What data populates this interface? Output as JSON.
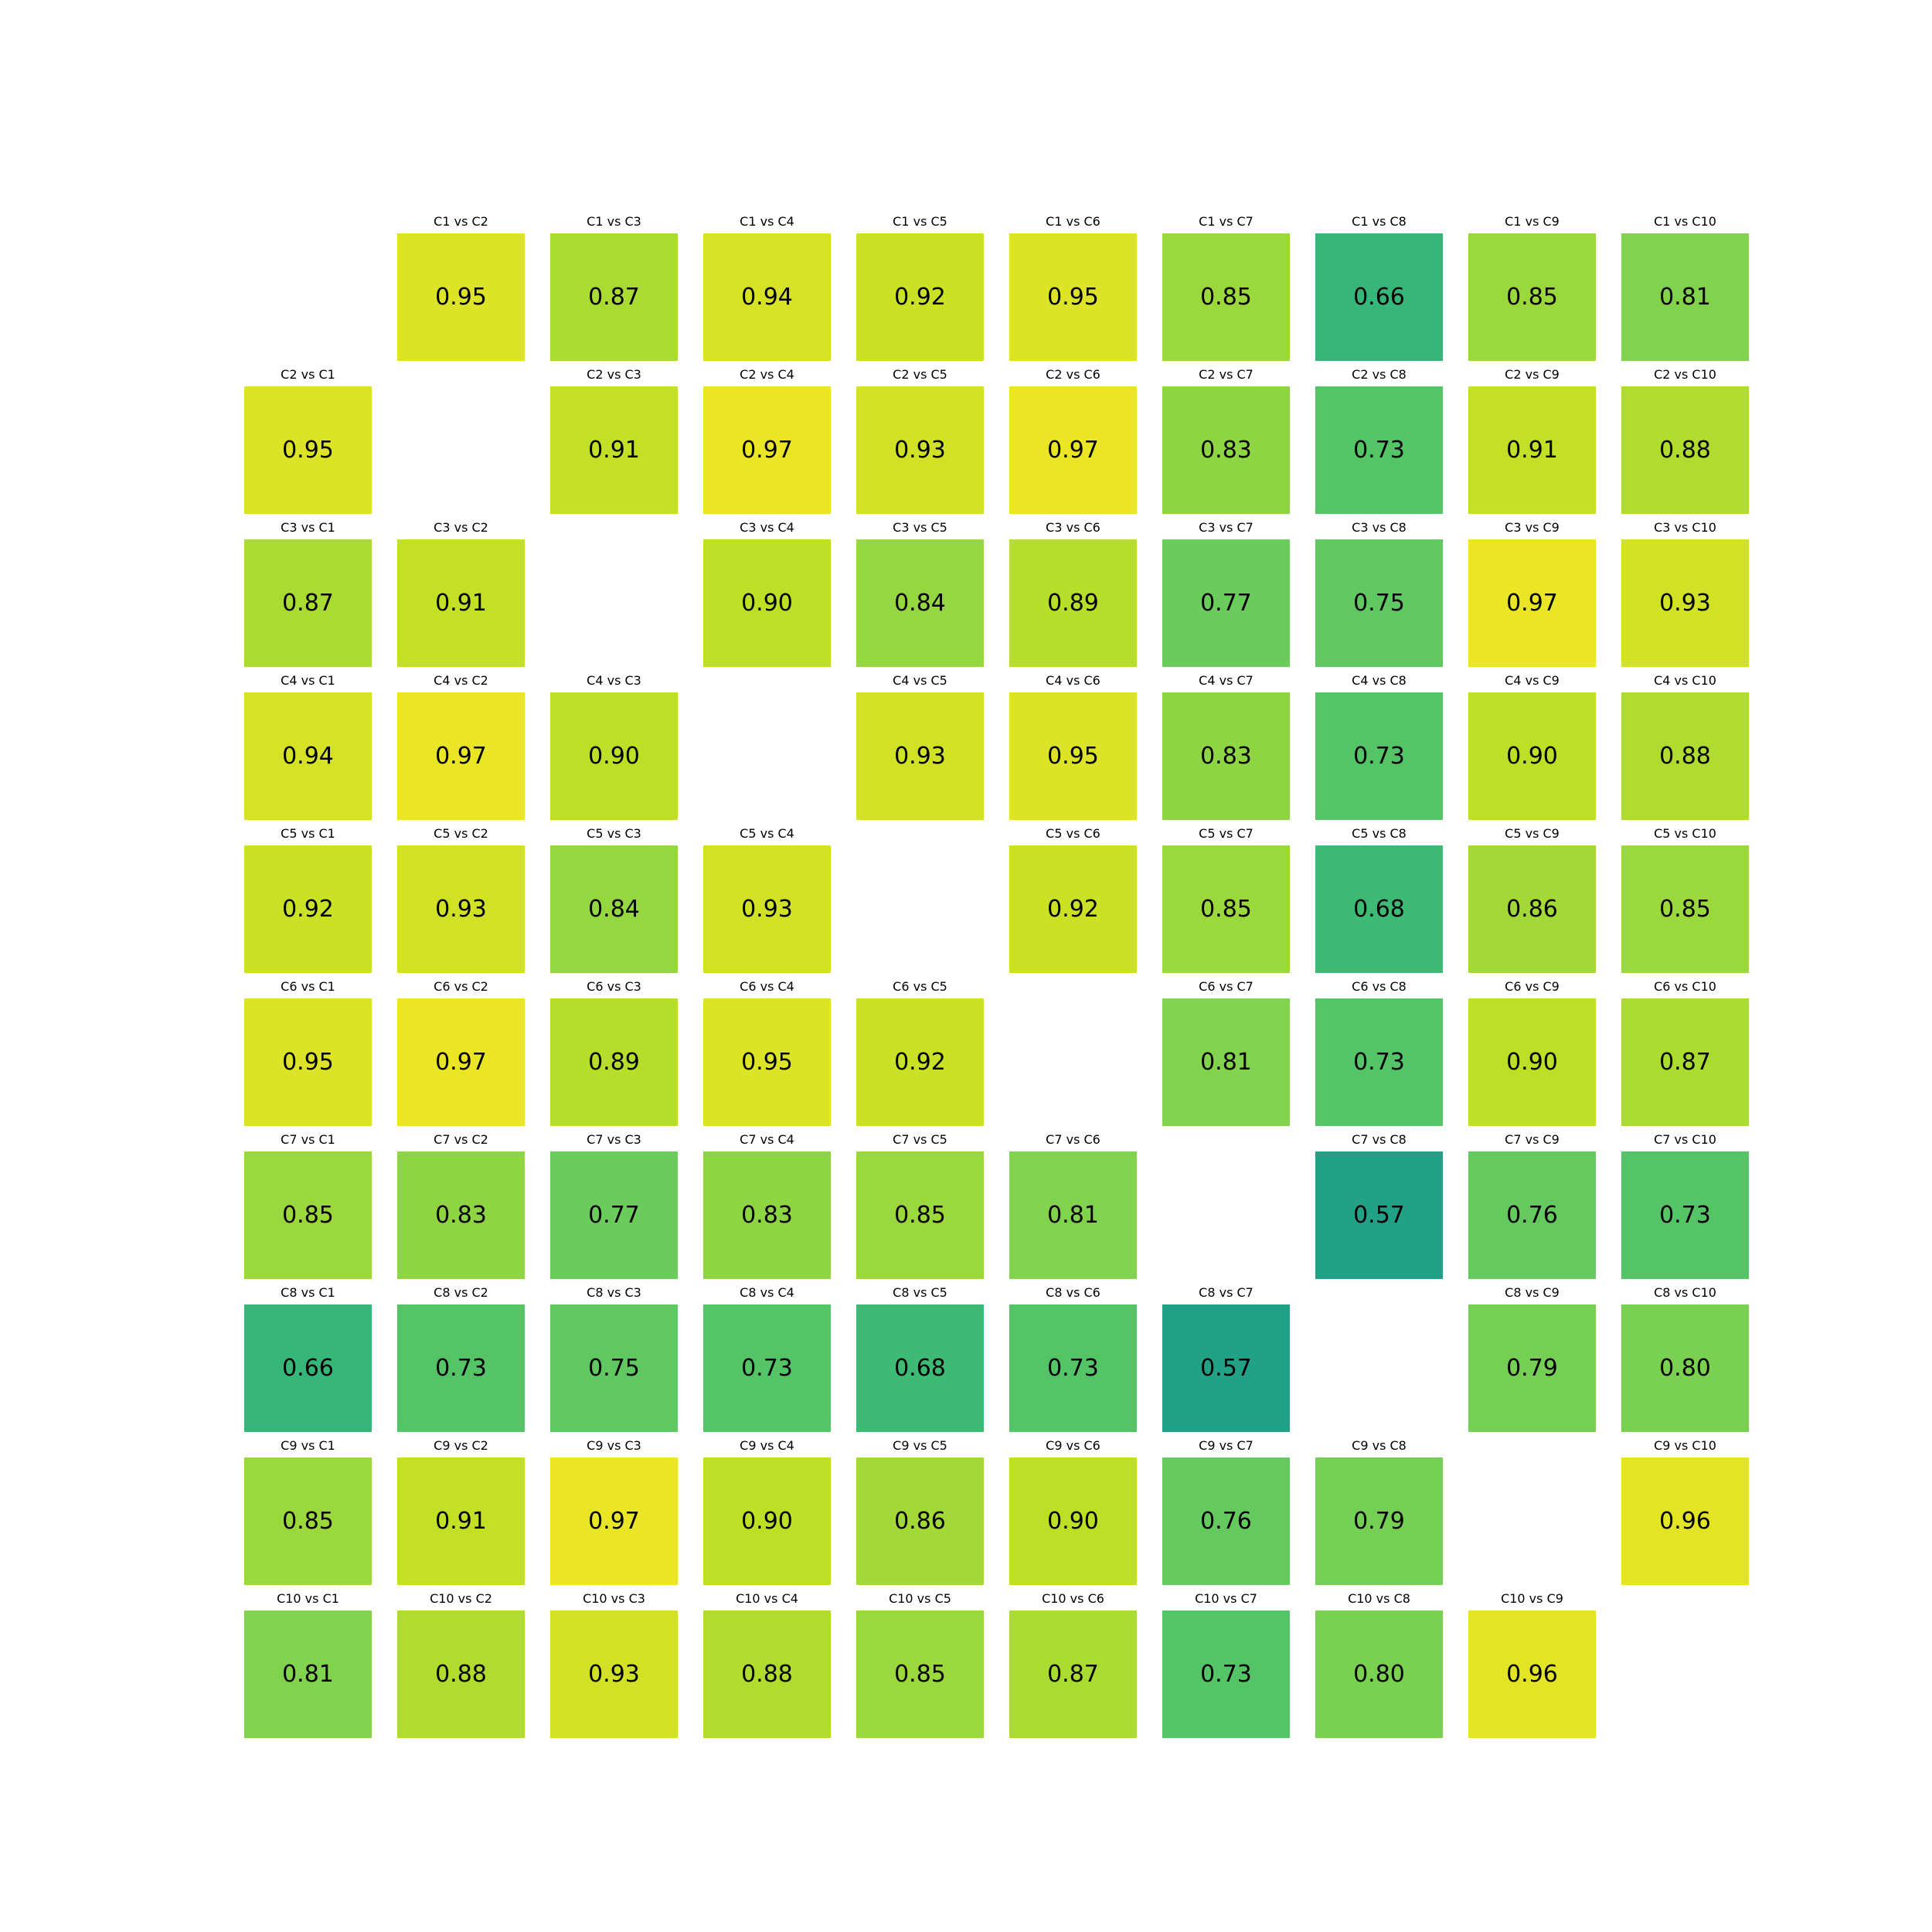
{
  "chart_data": {
    "type": "heatmap",
    "title": "",
    "xlabel": "",
    "ylabel": "",
    "grid": false,
    "legend": "none",
    "colormap": "viridis (upper range, green to yellow)",
    "color_range": [
      0,
      1
    ],
    "categories": [
      "C1",
      "C2",
      "C3",
      "C4",
      "C5",
      "C6",
      "C7",
      "C8",
      "C9",
      "C10"
    ],
    "diagonal": "empty",
    "cell_label_format": "{row} vs {col}",
    "values": [
      [
        null,
        0.95,
        0.87,
        0.94,
        0.92,
        0.95,
        0.85,
        0.66,
        0.85,
        0.81
      ],
      [
        0.95,
        null,
        0.91,
        0.97,
        0.93,
        0.97,
        0.83,
        0.73,
        0.91,
        0.88
      ],
      [
        0.87,
        0.91,
        null,
        0.9,
        0.84,
        0.89,
        0.77,
        0.75,
        0.97,
        0.93
      ],
      [
        0.94,
        0.97,
        0.9,
        null,
        0.93,
        0.95,
        0.83,
        0.73,
        0.9,
        0.88
      ],
      [
        0.92,
        0.93,
        0.84,
        0.93,
        null,
        0.92,
        0.85,
        0.68,
        0.86,
        0.85
      ],
      [
        0.95,
        0.97,
        0.89,
        0.95,
        0.92,
        null,
        0.81,
        0.73,
        0.9,
        0.87
      ],
      [
        0.85,
        0.83,
        0.77,
        0.83,
        0.85,
        0.81,
        null,
        0.57,
        0.76,
        0.73
      ],
      [
        0.66,
        0.73,
        0.75,
        0.73,
        0.68,
        0.73,
        0.57,
        null,
        0.79,
        0.8
      ],
      [
        0.85,
        0.91,
        0.97,
        0.9,
        0.86,
        0.9,
        0.76,
        0.79,
        null,
        0.96
      ],
      [
        0.81,
        0.88,
        0.93,
        0.88,
        0.85,
        0.87,
        0.73,
        0.8,
        0.96,
        null
      ]
    ]
  }
}
